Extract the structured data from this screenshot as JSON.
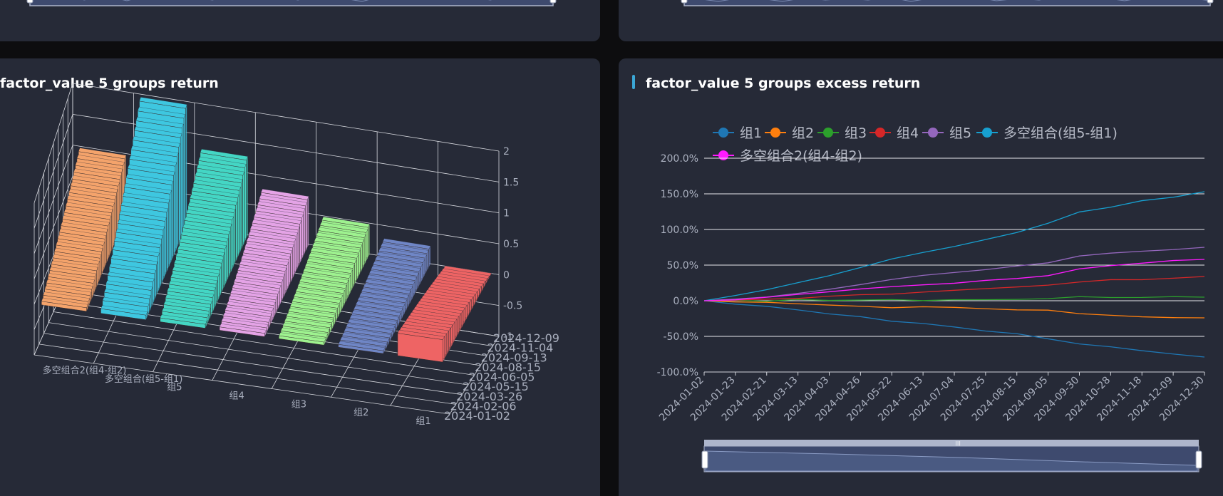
{
  "panels": {
    "left": {
      "title": "factor_value 5 groups return"
    },
    "right": {
      "title": "factor_value 5 groups excess return"
    }
  },
  "colors": {
    "panel_bg": "#262a37",
    "slider_fill": "#3e4a6e",
    "slider_border": "#aeb6cc"
  },
  "chart_data": [
    {
      "type": "bar3d",
      "title": "factor_value 5 groups return",
      "categories": [
        "多空组合2(组4-组2)",
        "多空组合(组5-组1)",
        "组5",
        "组4",
        "组3",
        "组2",
        "组1"
      ],
      "dates": [
        "2024-01-02",
        "2024-02-06",
        "2024-03-26",
        "2024-05-15",
        "2024-06-05",
        "2024-08-15",
        "2024-09-13",
        "2024-11-04",
        "2024-12-09"
      ],
      "zlim": [
        -1,
        2
      ],
      "zticks": [
        "-1",
        "-0.5",
        "0",
        "0.5",
        "1",
        "1.5",
        "2"
      ],
      "series": [
        {
          "category": "多空组合2(组4-组2)",
          "color": "#f4a36b",
          "end_value": 1.0
        },
        {
          "category": "多空组合(组5-组1)",
          "color": "#3ec7e0",
          "end_value": 2.0
        },
        {
          "category": "组5",
          "color": "#44d6c4",
          "end_value": 1.3
        },
        {
          "category": "组4",
          "color": "#e4a3e6",
          "end_value": 0.8
        },
        {
          "category": "组3",
          "color": "#9ef28f",
          "end_value": 0.5
        },
        {
          "category": "组2",
          "color": "#6f86c6",
          "end_value": 0.3
        },
        {
          "category": "组1",
          "color": "#ee6464",
          "end_value": 0.0
        }
      ]
    },
    {
      "type": "line",
      "title": "factor_value 5 groups excess return",
      "x": [
        "2024-01-02",
        "2024-01-23",
        "2024-02-21",
        "2024-03-13",
        "2024-04-03",
        "2024-04-26",
        "2024-05-22",
        "2024-06-13",
        "2024-07-04",
        "2024-07-25",
        "2024-08-15",
        "2024-09-05",
        "2024-09-30",
        "2024-10-28",
        "2024-11-18",
        "2024-12-09",
        "2024-12-30"
      ],
      "ylim": [
        -100,
        200
      ],
      "yticks": [
        "-100.0%",
        "-50.0%",
        "0.0%",
        "50.0%",
        "100.0%",
        "150.0%",
        "200.0%"
      ],
      "legend_position": "top",
      "series": [
        {
          "name": "组1",
          "color": "#1f77b4",
          "values": [
            0,
            -4,
            -8,
            -13,
            -18,
            -23,
            -28,
            -32,
            -37,
            -42,
            -47,
            -53,
            -60,
            -65,
            -70,
            -74,
            -79
          ]
        },
        {
          "name": "组2",
          "color": "#ff7f0e",
          "values": [
            0,
            -2,
            -3,
            -5,
            -6,
            -7,
            -9,
            -9,
            -10,
            -11,
            -12,
            -13,
            -18,
            -20,
            -22,
            -23,
            -24
          ]
        },
        {
          "name": "组3",
          "color": "#2ca02c",
          "values": [
            0,
            0,
            0,
            1,
            1,
            1,
            1,
            1,
            1,
            2,
            2,
            3,
            5,
            4,
            5,
            5,
            5
          ]
        },
        {
          "name": "组4",
          "color": "#d62728",
          "values": [
            0,
            1,
            2,
            4,
            6,
            8,
            10,
            12,
            14,
            17,
            20,
            22,
            27,
            29,
            30,
            32,
            34
          ]
        },
        {
          "name": "组5",
          "color": "#9467bd",
          "values": [
            0,
            3,
            6,
            11,
            16,
            22,
            30,
            35,
            39,
            43,
            48,
            53,
            62,
            66,
            69,
            72,
            75
          ]
        },
        {
          "name": "多空组合(组5-组1)",
          "color": "#17a0d0",
          "values": [
            0,
            8,
            15,
            25,
            35,
            46,
            59,
            67,
            76,
            86,
            96,
            108,
            124,
            132,
            140,
            146,
            153
          ]
        },
        {
          "name": "多空组合2(组4-组2)",
          "color": "#ff1aff",
          "values": [
            0,
            2,
            5,
            9,
            12,
            16,
            19,
            22,
            25,
            29,
            32,
            36,
            45,
            50,
            53,
            56,
            58
          ]
        }
      ]
    }
  ]
}
